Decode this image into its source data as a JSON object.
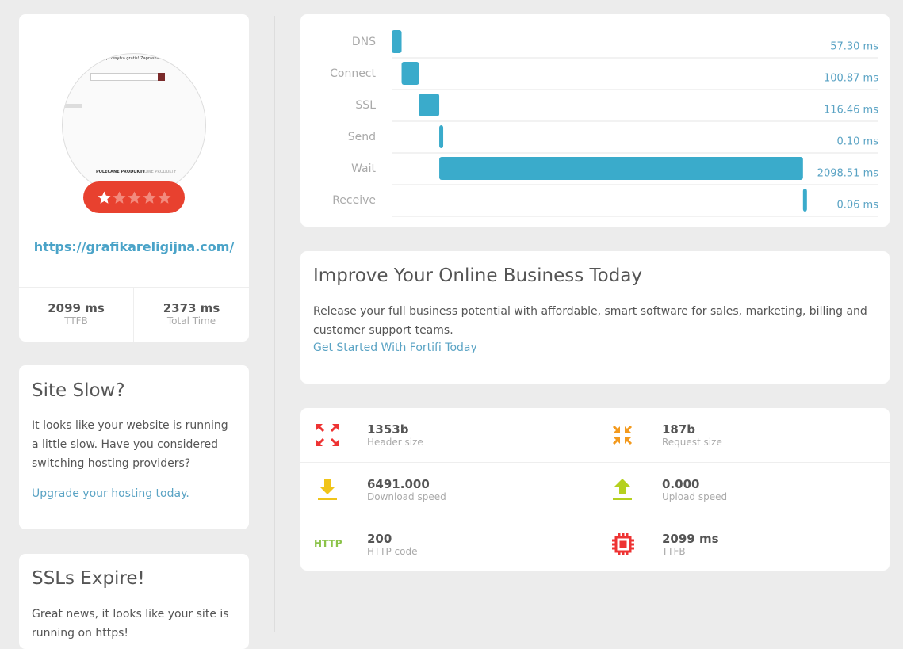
{
  "site": {
    "thumbnail": {
      "banner": "przesyłka gratis! Zapraszamy",
      "tabs": [
        "POLECANE PRODUKTY",
        "NOWE PRODUKTY"
      ]
    },
    "rating": 1,
    "rating_max": 5,
    "url": "https://grafikareligijna.com/",
    "stats": [
      {
        "value": "2099 ms",
        "label": "TTFB"
      },
      {
        "value": "2373 ms",
        "label": "Total Time"
      }
    ]
  },
  "site_slow": {
    "title": "Site Slow?",
    "text": "It looks like your website is running a little slow. Have you considered switching hosting providers?",
    "link": "Upgrade your hosting today."
  },
  "ssl": {
    "title": "SSLs Expire!",
    "text": "Great news, it looks like your site is running on https!"
  },
  "timing": {
    "type": "bar",
    "categories": [
      "DNS",
      "Connect",
      "SSL",
      "Send",
      "Wait",
      "Receive"
    ],
    "values": [
      57.3,
      100.87,
      116.46,
      0.1,
      2098.51,
      0.06
    ],
    "value_labels": [
      "57.30 ms",
      "100.87 ms",
      "116.46 ms",
      "0.10 ms",
      "2098.51 ms",
      "0.06 ms"
    ],
    "color": "#3aabcb"
  },
  "promo": {
    "title": "Improve Your Online Business Today",
    "text": "Release your full business potential with affordable, smart software for sales, marketing, billing and customer support teams.",
    "link": "Get Started With Fortifi Today"
  },
  "metrics": [
    {
      "value": "1353b",
      "label": "Header size"
    },
    {
      "value": "187b",
      "label": "Request size"
    },
    {
      "value": "6491.000",
      "label": "Download speed"
    },
    {
      "value": "0.000",
      "label": "Upload speed"
    },
    {
      "value": "200",
      "label": "HTTP code",
      "icon_text": "HTTP"
    },
    {
      "value": "2099 ms",
      "label": "TTFB"
    }
  ]
}
